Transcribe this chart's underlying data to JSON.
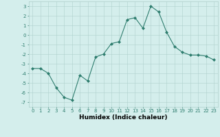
{
  "x": [
    0,
    1,
    2,
    3,
    4,
    5,
    6,
    7,
    8,
    9,
    10,
    11,
    12,
    13,
    14,
    15,
    16,
    17,
    18,
    19,
    20,
    21,
    22,
    23
  ],
  "y": [
    -3.5,
    -3.5,
    -4.0,
    -5.5,
    -6.5,
    -6.8,
    -4.2,
    -4.8,
    -2.3,
    -2.0,
    -0.9,
    -0.7,
    1.6,
    1.8,
    0.7,
    3.0,
    2.4,
    0.3,
    -1.2,
    -1.8,
    -2.1,
    -2.1,
    -2.2,
    -2.6
  ],
  "line_color": "#2e7d6e",
  "marker": "D",
  "marker_size": 2.0,
  "bg_color": "#d4eeec",
  "grid_color": "#b0d0cc",
  "xlabel": "Humidex (Indice chaleur)",
  "xlim": [
    -0.5,
    23.5
  ],
  "ylim": [
    -7.5,
    3.5
  ],
  "yticks": [
    -7,
    -6,
    -5,
    -4,
    -3,
    -2,
    -1,
    0,
    1,
    2,
    3
  ],
  "xticks": [
    0,
    1,
    2,
    3,
    4,
    5,
    6,
    7,
    8,
    9,
    10,
    11,
    12,
    13,
    14,
    15,
    16,
    17,
    18,
    19,
    20,
    21,
    22,
    23
  ],
  "tick_fontsize": 5.0,
  "xlabel_fontsize": 6.5
}
